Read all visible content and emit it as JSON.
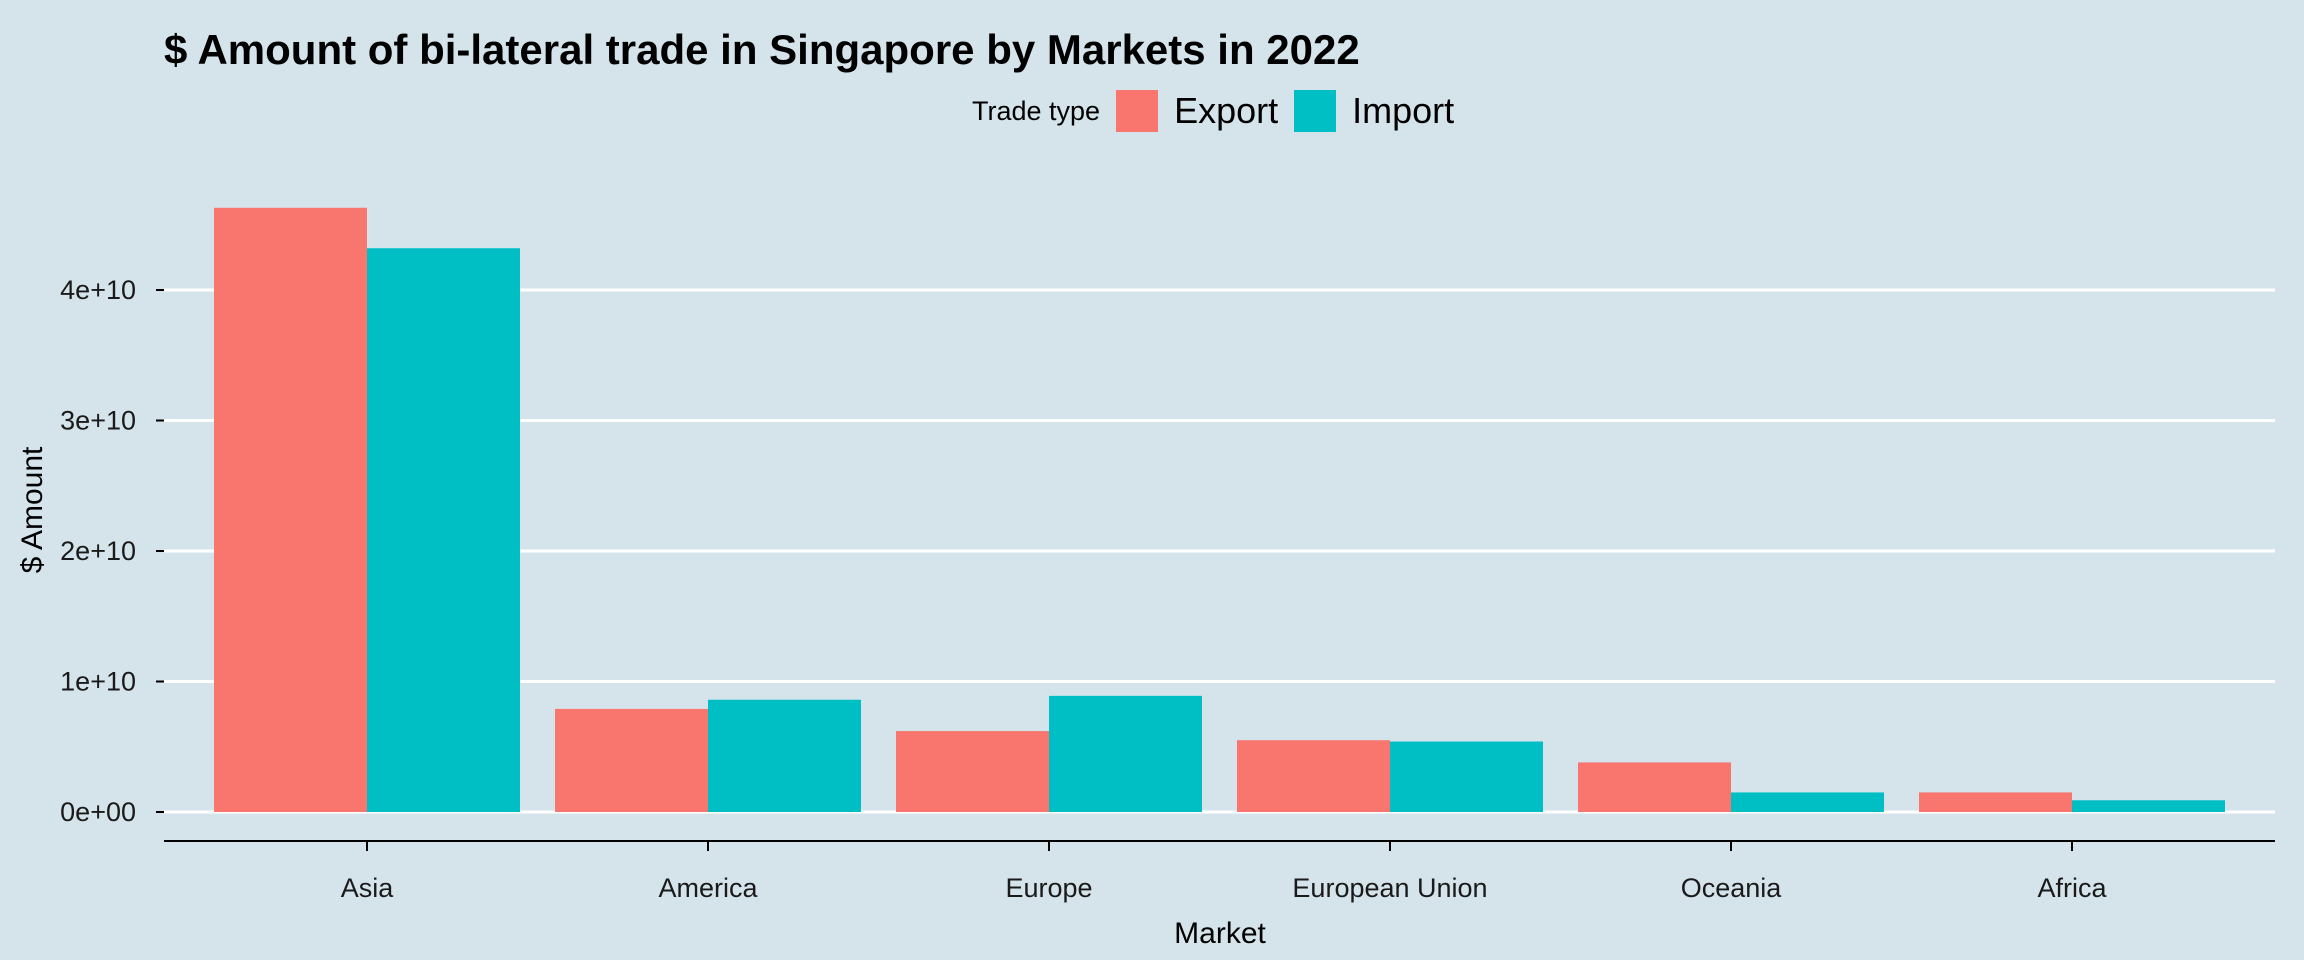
{
  "chart_data": {
    "type": "bar",
    "title": "$ Amount of bi-lateral trade in Singapore by Markets in 2022",
    "xlabel": "Market",
    "ylabel": "$ Amount",
    "categories": [
      "Asia",
      "America",
      "Europe",
      "European Union",
      "Oceania",
      "Africa"
    ],
    "series": [
      {
        "name": "Export",
        "color": "#F8766D",
        "values": [
          46300000000,
          7900000000,
          6200000000,
          5500000000,
          3800000000,
          1500000000
        ]
      },
      {
        "name": "Import",
        "color": "#00BFC4",
        "values": [
          43200000000,
          8600000000,
          8900000000,
          5400000000,
          1500000000,
          900000000
        ]
      }
    ],
    "yticks": [
      0,
      10000000000,
      20000000000,
      30000000000,
      40000000000
    ],
    "ytick_labels": [
      "0e+00",
      "1e+10",
      "2e+10",
      "3e+10",
      "4e+10"
    ],
    "ylim": [
      0,
      47000000000
    ],
    "grid": "horizontal-major",
    "legend_position": "top",
    "legend_title": "Trade type"
  }
}
